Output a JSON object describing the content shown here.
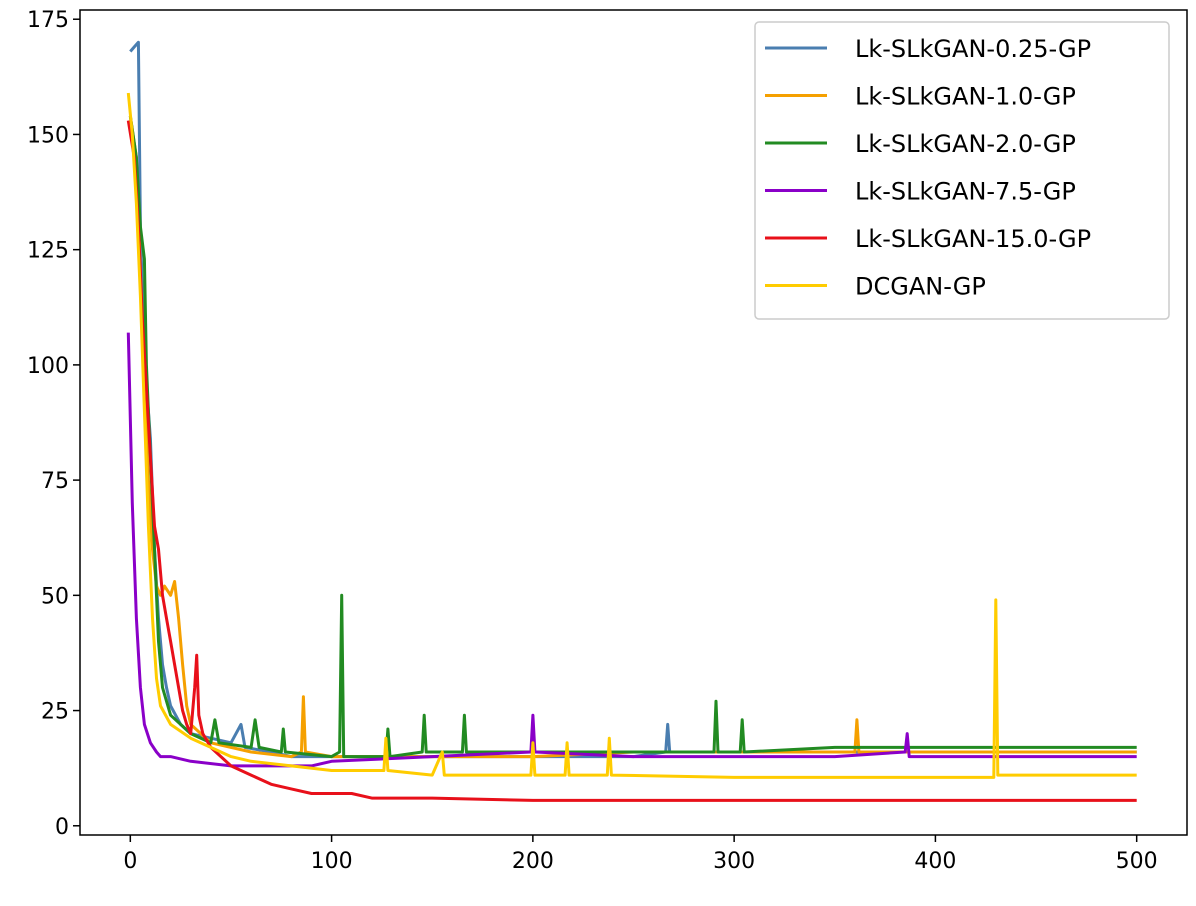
{
  "chart_data": {
    "type": "line",
    "xlim": [
      -25,
      525
    ],
    "ylim": [
      -2,
      177
    ],
    "x_ticks": [
      0,
      100,
      200,
      300,
      400,
      500
    ],
    "y_ticks": [
      0,
      25,
      50,
      75,
      100,
      125,
      150,
      175
    ],
    "grid": false,
    "legend_position": "top-right",
    "series": [
      {
        "name": "Lk-SLkGAN-0.25-GP",
        "color": "#4a7eb0",
        "points": [
          [
            0,
            168
          ],
          [
            2,
            169
          ],
          [
            4,
            170
          ],
          [
            5,
            130
          ],
          [
            7,
            100
          ],
          [
            9,
            90
          ],
          [
            10,
            84
          ],
          [
            12,
            60
          ],
          [
            14,
            45
          ],
          [
            16,
            35
          ],
          [
            18,
            30
          ],
          [
            20,
            26
          ],
          [
            25,
            22
          ],
          [
            30,
            20
          ],
          [
            40,
            19
          ],
          [
            50,
            18
          ],
          [
            55,
            22
          ],
          [
            57,
            17
          ],
          [
            70,
            16
          ],
          [
            80,
            15
          ],
          [
            100,
            15
          ],
          [
            150,
            15
          ],
          [
            200,
            15
          ],
          [
            250,
            15
          ],
          [
            266,
            16
          ],
          [
            267,
            22
          ],
          [
            268,
            16
          ],
          [
            300,
            16
          ],
          [
            350,
            16
          ],
          [
            400,
            16
          ],
          [
            450,
            16
          ],
          [
            500,
            16
          ]
        ]
      },
      {
        "name": "Lk-SLkGAN-1.0-GP",
        "color": "#f5a000",
        "points": [
          [
            0,
            154
          ],
          [
            3,
            145
          ],
          [
            5,
            120
          ],
          [
            7,
            95
          ],
          [
            9,
            75
          ],
          [
            11,
            60
          ],
          [
            13,
            52
          ],
          [
            15,
            50
          ],
          [
            17,
            52
          ],
          [
            20,
            50
          ],
          [
            22,
            53
          ],
          [
            24,
            45
          ],
          [
            26,
            35
          ],
          [
            28,
            26
          ],
          [
            30,
            22
          ],
          [
            40,
            18
          ],
          [
            50,
            17
          ],
          [
            60,
            16
          ],
          [
            80,
            15
          ],
          [
            85,
            16
          ],
          [
            86,
            28
          ],
          [
            87,
            16
          ],
          [
            100,
            15
          ],
          [
            150,
            15
          ],
          [
            200,
            15
          ],
          [
            250,
            16
          ],
          [
            300,
            16
          ],
          [
            350,
            16
          ],
          [
            360,
            16
          ],
          [
            361,
            23
          ],
          [
            362,
            16
          ],
          [
            400,
            16
          ],
          [
            450,
            16
          ],
          [
            500,
            16
          ]
        ]
      },
      {
        "name": "Lk-SLkGAN-2.0-GP",
        "color": "#228b22",
        "points": [
          [
            0,
            154
          ],
          [
            3,
            145
          ],
          [
            5,
            130
          ],
          [
            7,
            123
          ],
          [
            8,
            100
          ],
          [
            10,
            80
          ],
          [
            12,
            60
          ],
          [
            14,
            40
          ],
          [
            16,
            30
          ],
          [
            20,
            24
          ],
          [
            30,
            20
          ],
          [
            40,
            18
          ],
          [
            42,
            23
          ],
          [
            44,
            18
          ],
          [
            60,
            17
          ],
          [
            62,
            23
          ],
          [
            64,
            17
          ],
          [
            75,
            16
          ],
          [
            76,
            21
          ],
          [
            77,
            16
          ],
          [
            100,
            15
          ],
          [
            104,
            16
          ],
          [
            105,
            50
          ],
          [
            106,
            15
          ],
          [
            127,
            15
          ],
          [
            128,
            21
          ],
          [
            129,
            15
          ],
          [
            145,
            16
          ],
          [
            146,
            24
          ],
          [
            147,
            16
          ],
          [
            165,
            16
          ],
          [
            166,
            24
          ],
          [
            167,
            16
          ],
          [
            200,
            16
          ],
          [
            250,
            16
          ],
          [
            290,
            16
          ],
          [
            291,
            27
          ],
          [
            292,
            16
          ],
          [
            303,
            16
          ],
          [
            304,
            23
          ],
          [
            305,
            16
          ],
          [
            350,
            17
          ],
          [
            400,
            17
          ],
          [
            450,
            17
          ],
          [
            500,
            17
          ]
        ]
      },
      {
        "name": "Lk-SLkGAN-7.5-GP",
        "color": "#8a00c8",
        "points": [
          [
            -1,
            107
          ],
          [
            1,
            70
          ],
          [
            3,
            45
          ],
          [
            5,
            30
          ],
          [
            7,
            22
          ],
          [
            10,
            18
          ],
          [
            13,
            16
          ],
          [
            15,
            15
          ],
          [
            20,
            15
          ],
          [
            30,
            14
          ],
          [
            50,
            13
          ],
          [
            70,
            13
          ],
          [
            90,
            13
          ],
          [
            100,
            14
          ],
          [
            150,
            15
          ],
          [
            199,
            16
          ],
          [
            200,
            24
          ],
          [
            201,
            16
          ],
          [
            250,
            15
          ],
          [
            300,
            15
          ],
          [
            350,
            15
          ],
          [
            385,
            16
          ],
          [
            386,
            20
          ],
          [
            387,
            15
          ],
          [
            400,
            15
          ],
          [
            450,
            15
          ],
          [
            500,
            15
          ]
        ]
      },
      {
        "name": "Lk-SLkGAN-15.0-GP",
        "color": "#e8101a",
        "points": [
          [
            -1,
            153
          ],
          [
            2,
            145
          ],
          [
            4,
            130
          ],
          [
            6,
            110
          ],
          [
            8,
            95
          ],
          [
            10,
            80
          ],
          [
            12,
            65
          ],
          [
            14,
            60
          ],
          [
            16,
            50
          ],
          [
            18,
            45
          ],
          [
            20,
            40
          ],
          [
            22,
            35
          ],
          [
            24,
            30
          ],
          [
            26,
            25
          ],
          [
            28,
            22
          ],
          [
            30,
            20
          ],
          [
            32,
            30
          ],
          [
            33,
            37
          ],
          [
            34,
            24
          ],
          [
            36,
            20
          ],
          [
            40,
            17
          ],
          [
            45,
            15
          ],
          [
            50,
            13
          ],
          [
            60,
            11
          ],
          [
            70,
            9
          ],
          [
            80,
            8
          ],
          [
            90,
            7
          ],
          [
            100,
            7
          ],
          [
            110,
            7
          ],
          [
            120,
            6
          ],
          [
            150,
            6
          ],
          [
            200,
            5.5
          ],
          [
            250,
            5.5
          ],
          [
            300,
            5.5
          ],
          [
            350,
            5.5
          ],
          [
            400,
            5.5
          ],
          [
            450,
            5.5
          ],
          [
            500,
            5.5
          ]
        ]
      },
      {
        "name": "DCGAN-GP",
        "color": "#ffcc00",
        "points": [
          [
            -1,
            159
          ],
          [
            1,
            150
          ],
          [
            3,
            135
          ],
          [
            5,
            115
          ],
          [
            7,
            90
          ],
          [
            9,
            65
          ],
          [
            11,
            45
          ],
          [
            13,
            32
          ],
          [
            15,
            26
          ],
          [
            20,
            22
          ],
          [
            30,
            19
          ],
          [
            40,
            17
          ],
          [
            50,
            15
          ],
          [
            60,
            14
          ],
          [
            80,
            13
          ],
          [
            100,
            12
          ],
          [
            126,
            12
          ],
          [
            127,
            19
          ],
          [
            128,
            12
          ],
          [
            150,
            11
          ],
          [
            155,
            16
          ],
          [
            156,
            11
          ],
          [
            199,
            11
          ],
          [
            200,
            18
          ],
          [
            201,
            11
          ],
          [
            216,
            11
          ],
          [
            217,
            18
          ],
          [
            218,
            11
          ],
          [
            237,
            11
          ],
          [
            238,
            19
          ],
          [
            239,
            11
          ],
          [
            300,
            10.5
          ],
          [
            350,
            10.5
          ],
          [
            400,
            10.5
          ],
          [
            429,
            10.5
          ],
          [
            430,
            49
          ],
          [
            431,
            11
          ],
          [
            450,
            11
          ],
          [
            500,
            11
          ]
        ]
      }
    ]
  }
}
